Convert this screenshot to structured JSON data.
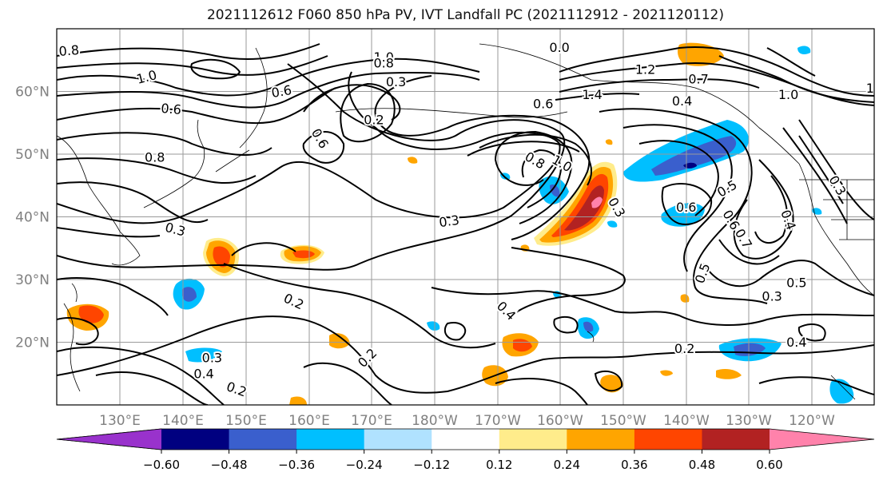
{
  "figure": {
    "title": "2021112612 F060 850 hPa PV, IVT Landfall PC (2021112912 - 2021120112)"
  },
  "map": {
    "lat_labels": [
      "60°N",
      "50°N",
      "40°N",
      "30°N",
      "20°N"
    ],
    "lon_labels": [
      "130°E",
      "140°E",
      "150°E",
      "160°E",
      "170°E",
      "180°W",
      "170°W",
      "160°W",
      "150°W",
      "140°W",
      "130°W",
      "120°W"
    ],
    "label_color": "#808080",
    "grid_color": "#9a9a9a",
    "contour_color": "#000000",
    "contour_labels": [
      {
        "text": "0.8",
        "x": 1.5,
        "y": 66.5,
        "rot": -5
      },
      {
        "text": "1.0",
        "x": 11,
        "y": 62.3,
        "rot": -15
      },
      {
        "text": "0.6",
        "x": 14,
        "y": 57.2,
        "rot": 5
      },
      {
        "text": "0.8",
        "x": 12,
        "y": 49.5,
        "rot": 0
      },
      {
        "text": "1.0",
        "x": 40,
        "y": 65.5,
        "rot": 0
      },
      {
        "text": "0.8",
        "x": 40,
        "y": 64.5,
        "rot": 0
      },
      {
        "text": "0.3",
        "x": 41.5,
        "y": 61.5,
        "rot": 0
      },
      {
        "text": "0.6",
        "x": 27.5,
        "y": 60,
        "rot": -10
      },
      {
        "text": "0.2",
        "x": 38.8,
        "y": 55.5,
        "rot": 0
      },
      {
        "text": "0.6",
        "x": 32.2,
        "y": 52.5,
        "rot": 60
      },
      {
        "text": "0.3",
        "x": 48,
        "y": 39.3,
        "rot": -8
      },
      {
        "text": "0.8",
        "x": 58.5,
        "y": 49,
        "rot": 30
      },
      {
        "text": "1.0",
        "x": 61.8,
        "y": 48.5,
        "rot": 30
      },
      {
        "text": "0.6",
        "x": 59.5,
        "y": 58,
        "rot": 0
      },
      {
        "text": "1.2",
        "x": 72,
        "y": 63.5,
        "rot": 0
      },
      {
        "text": "0.7",
        "x": 78.5,
        "y": 62,
        "rot": 0
      },
      {
        "text": "1.4",
        "x": 65.5,
        "y": 59.5,
        "rot": 0
      },
      {
        "text": "0.4",
        "x": 76.5,
        "y": 58.5,
        "rot": 0
      },
      {
        "text": "0.3",
        "x": 68.5,
        "y": 41.5,
        "rot": 60
      },
      {
        "text": "0.5",
        "x": 82,
        "y": 44.5,
        "rot": -30
      },
      {
        "text": "0.6",
        "x": 77,
        "y": 41.5,
        "rot": 0
      },
      {
        "text": "0.6",
        "x": 82.5,
        "y": 39.5,
        "rot": 60
      },
      {
        "text": "0.7",
        "x": 84,
        "y": 36.5,
        "rot": 60
      },
      {
        "text": "0.4",
        "x": 89.5,
        "y": 39.5,
        "rot": 70
      },
      {
        "text": "0.3",
        "x": 95.5,
        "y": 45,
        "rot": 60
      },
      {
        "text": "0.5",
        "x": 79,
        "y": 31,
        "rot": -70
      },
      {
        "text": "0.5",
        "x": 90.5,
        "y": 29.5,
        "rot": 0
      },
      {
        "text": "0.3",
        "x": 87.5,
        "y": 27.3,
        "rot": 0
      },
      {
        "text": "0.4",
        "x": 90.5,
        "y": 20,
        "rot": 0
      },
      {
        "text": "0.4",
        "x": 55,
        "y": 25,
        "rot": 45
      },
      {
        "text": "0.2",
        "x": 29,
        "y": 26.5,
        "rot": 25
      },
      {
        "text": "0.2",
        "x": 38,
        "y": 17.5,
        "rot": -45
      },
      {
        "text": "0.2",
        "x": 76.8,
        "y": 19,
        "rot": 0
      },
      {
        "text": "0.3",
        "x": 19,
        "y": 17.5,
        "rot": 0
      },
      {
        "text": "0.4",
        "x": 18,
        "y": 15,
        "rot": 0
      },
      {
        "text": "0.2",
        "x": 22,
        "y": 12.5,
        "rot": 20
      },
      {
        "text": "0.3",
        "x": 14.5,
        "y": 38,
        "rot": 15
      },
      {
        "text": "1",
        "x": 99.5,
        "y": 60.5,
        "rot": 0
      },
      {
        "text": "1.0",
        "x": 89.5,
        "y": 59.5,
        "rot": 0
      },
      {
        "text": "0.0",
        "x": 61.5,
        "y": 67,
        "rot": 0
      }
    ]
  },
  "colorbar": {
    "ticks": [
      "−0.60",
      "−0.48",
      "−0.36",
      "−0.24",
      "−0.12",
      "0.12",
      "0.24",
      "0.36",
      "0.48",
      "0.60"
    ],
    "colors": [
      "#9932cc",
      "#000080",
      "#3a5fcd",
      "#00bfff",
      "#b0e2ff",
      "#ffffff",
      "#ffec8b",
      "#ffa500",
      "#ff4500",
      "#b22222",
      "#ff82ab"
    ],
    "levels": [
      -0.6,
      -0.48,
      -0.36,
      -0.24,
      -0.12,
      0.12,
      0.24,
      0.36,
      0.48,
      0.6
    ]
  }
}
